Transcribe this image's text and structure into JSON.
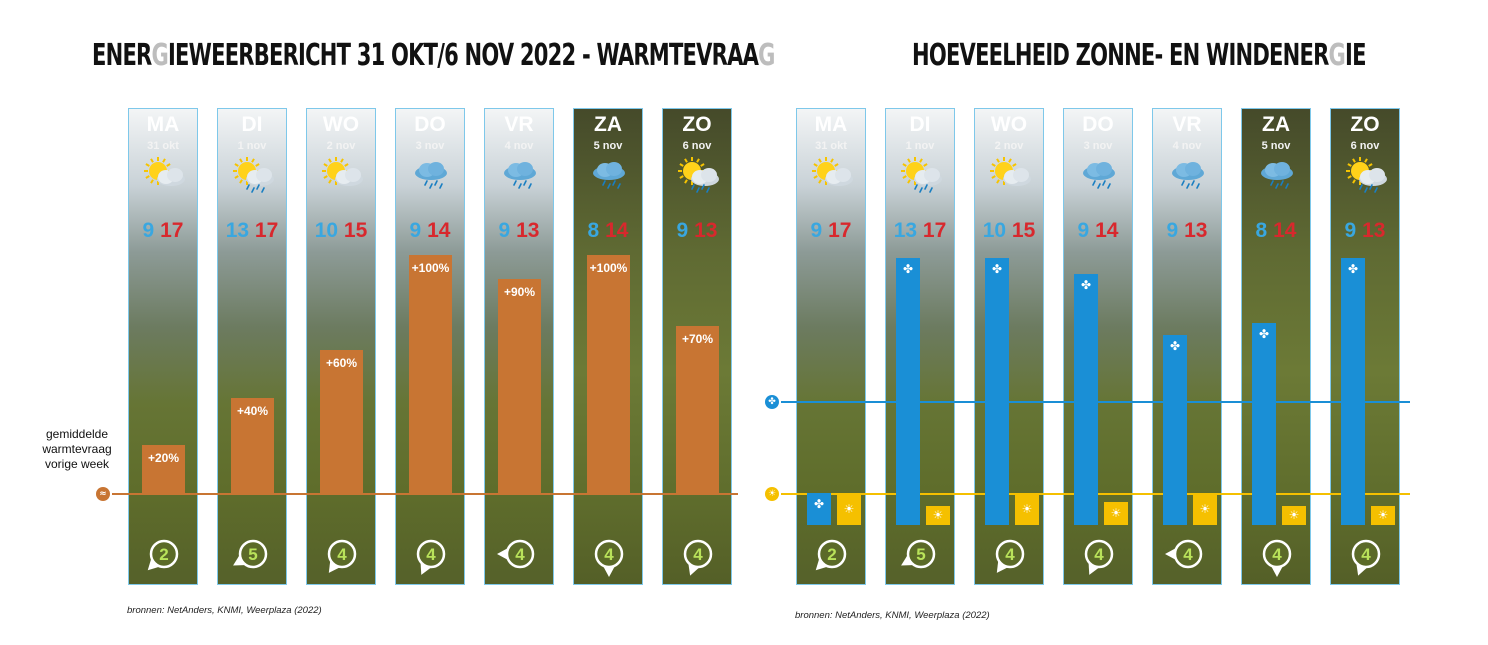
{
  "left_panel": {
    "title_parts": [
      "ENER",
      "G",
      "IEWEERBERICHT 31 OKT/6 NOV 2022 - WARMTEVRAA",
      "G"
    ],
    "legend": [
      "gemiddelde",
      "warmtevraag",
      "vorige week"
    ],
    "source": "bronnen: NetAnders, KNMI, Weerplaza (2022)",
    "bar_color": "#c87533",
    "line_color": "#c87533"
  },
  "right_panel": {
    "title_parts": [
      "HOEVEELHEID ZONNE- EN WINDENER",
      "G",
      "IE"
    ],
    "source": "bronnen: NetAnders, KNMI, Weerplaza (2022)",
    "wind_color": "#1a8fd6",
    "sun_color": "#f5c000"
  },
  "chart_data": [
    {
      "type": "bar",
      "title": "ENERGIEWEERBERICHT 31 OKT/6 NOV 2022 - WARMTEVRAAG",
      "categories": [
        "MA",
        "DI",
        "WO",
        "DO",
        "VR",
        "ZA",
        "ZO"
      ],
      "dates": [
        "31 okt",
        "1 nov",
        "2 nov",
        "3 nov",
        "4 nov",
        "5 nov",
        "6 nov"
      ],
      "weather": [
        "sun-cloud",
        "sun-cloud-rain",
        "sun-cloud",
        "cloud-rain",
        "cloud-rain",
        "cloud-rain",
        "sun-cloud-rain"
      ],
      "temp_min": [
        9,
        13,
        10,
        9,
        9,
        8,
        9
      ],
      "temp_max": [
        17,
        17,
        15,
        14,
        13,
        14,
        13
      ],
      "series": [
        {
          "values": [
            20,
            40,
            60,
            100,
            90,
            100,
            70
          ],
          "labels": [
            "+20%",
            "+40%",
            "+60%",
            "+100%",
            "+90%",
            "+100%",
            "+70%"
          ]
        }
      ],
      "baseline": 0,
      "ylim": [
        0,
        115
      ],
      "wind_force": [
        "2",
        "5",
        "4",
        "4",
        "4",
        "4",
        "4"
      ],
      "wind_dir_deg": [
        225,
        240,
        215,
        205,
        270,
        180,
        200
      ]
    },
    {
      "type": "bar",
      "title": "HOEVEELHEID ZONNE- EN WINDENERGIE",
      "categories": [
        "MA",
        "DI",
        "WO",
        "DO",
        "VR",
        "ZA",
        "ZO"
      ],
      "dates": [
        "31 okt",
        "1 nov",
        "2 nov",
        "3 nov",
        "4 nov",
        "5 nov",
        "6 nov"
      ],
      "weather": [
        "sun-cloud",
        "sun-cloud-rain",
        "sun-cloud",
        "cloud-rain",
        "cloud-rain",
        "cloud-rain",
        "sun-cloud-rain"
      ],
      "temp_min": [
        9,
        13,
        10,
        9,
        9,
        8,
        9
      ],
      "temp_max": [
        17,
        17,
        15,
        14,
        13,
        14,
        13
      ],
      "series": [
        {
          "values": [
            0.35,
            2.9,
            2.9,
            2.73,
            2.06,
            2.2,
            2.9
          ]
        },
        {
          "values": [
            1.0,
            0.6,
            1.0,
            0.72,
            1.0,
            0.6,
            0.6
          ]
        }
      ],
      "reference_lines": [
        1.0,
        1.0
      ],
      "ylim": [
        0,
        3.2
      ],
      "wind_force": [
        "2",
        "5",
        "4",
        "4",
        "4",
        "4",
        "4"
      ],
      "wind_dir_deg": [
        225,
        240,
        215,
        205,
        270,
        180,
        200
      ]
    }
  ]
}
